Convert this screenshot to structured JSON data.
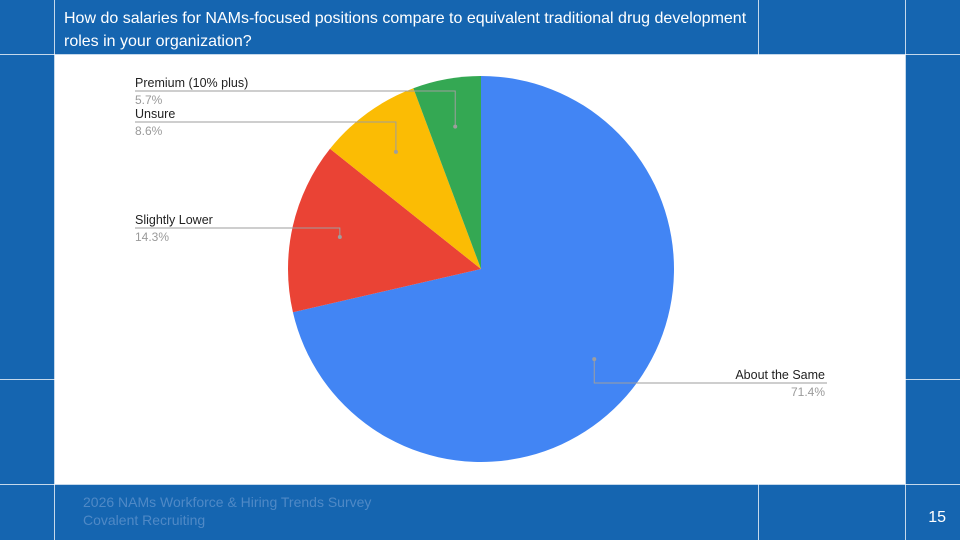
{
  "slide": {
    "question": "How do salaries for NAMs-focused positions compare to equivalent traditional drug development roles in your organization?",
    "footer_line1": "2026 NAMs Workforce & Hiring Trends Survey",
    "footer_line2": "Covalent Recruiting",
    "page_number": "15"
  },
  "chart_data": {
    "type": "pie",
    "title": "",
    "start_angle_deg": 0,
    "direction": "clockwise",
    "slices": [
      {
        "label": "About the Same",
        "value": 71.4,
        "value_label": "71.4%",
        "color": "#4285f4"
      },
      {
        "label": "Slightly Lower",
        "value": 14.3,
        "value_label": "14.3%",
        "color": "#ea4335"
      },
      {
        "label": "Unsure",
        "value": 8.6,
        "value_label": "8.6%",
        "color": "#fbbc04"
      },
      {
        "label": "Premium (10% plus)",
        "value": 5.7,
        "value_label": "5.7%",
        "color": "#34a853"
      }
    ]
  }
}
